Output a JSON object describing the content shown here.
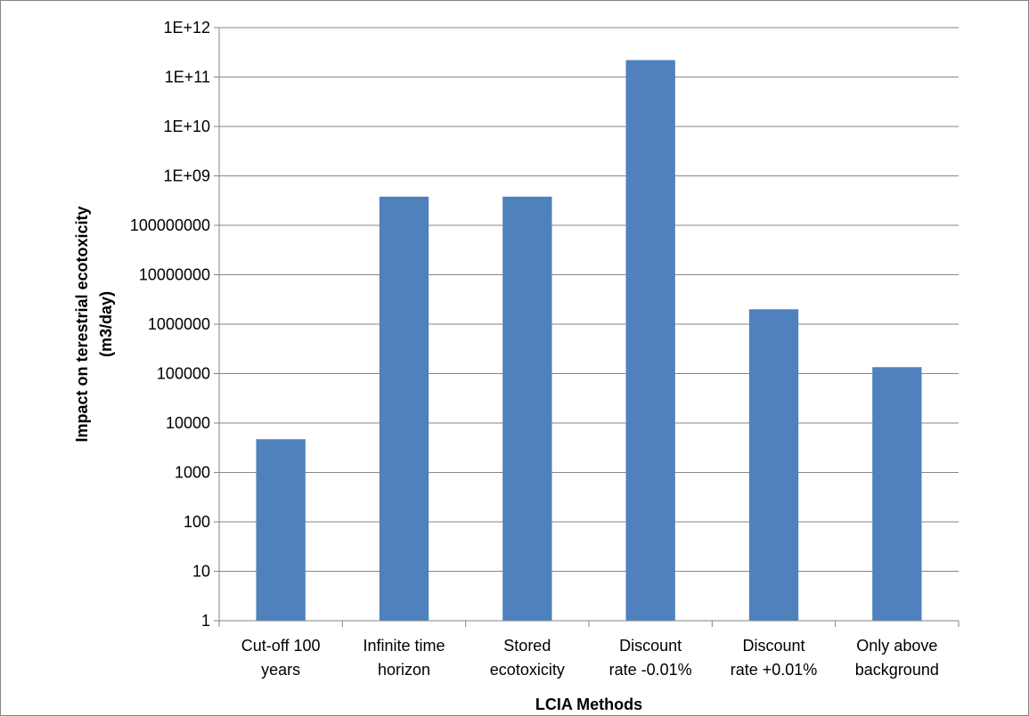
{
  "chart_data": {
    "type": "bar",
    "title": "",
    "xlabel": "LCIA Methods",
    "ylabel": [
      "Impact on terestrial ecotoxicity",
      "(m3/day)"
    ],
    "yscale": "log",
    "ylim": [
      1,
      1000000000000
    ],
    "yticks": [
      1,
      10,
      100,
      1000,
      10000,
      100000,
      1000000,
      10000000,
      100000000,
      1000000000,
      10000000000,
      100000000000,
      1000000000000
    ],
    "ytick_labels": [
      "1",
      "10",
      "100",
      "1000",
      "10000",
      "100000",
      "1000000",
      "10000000",
      "100000000",
      "1E+09",
      "1E+10",
      "1E+11",
      "1E+12"
    ],
    "categories": [
      [
        "Cut-off 100",
        "years"
      ],
      [
        "Infinite time",
        "horizon"
      ],
      [
        "Stored",
        "ecotoxicity"
      ],
      [
        "Discount",
        "rate -0.01%"
      ],
      [
        "Discount",
        "rate +0.01%"
      ],
      [
        "Only above",
        "background"
      ]
    ],
    "values": [
      4700,
      380000000,
      380000000,
      220000000000,
      2000000,
      135000
    ],
    "bar_color": "#4F81BD",
    "grid": true,
    "legend": "none"
  }
}
